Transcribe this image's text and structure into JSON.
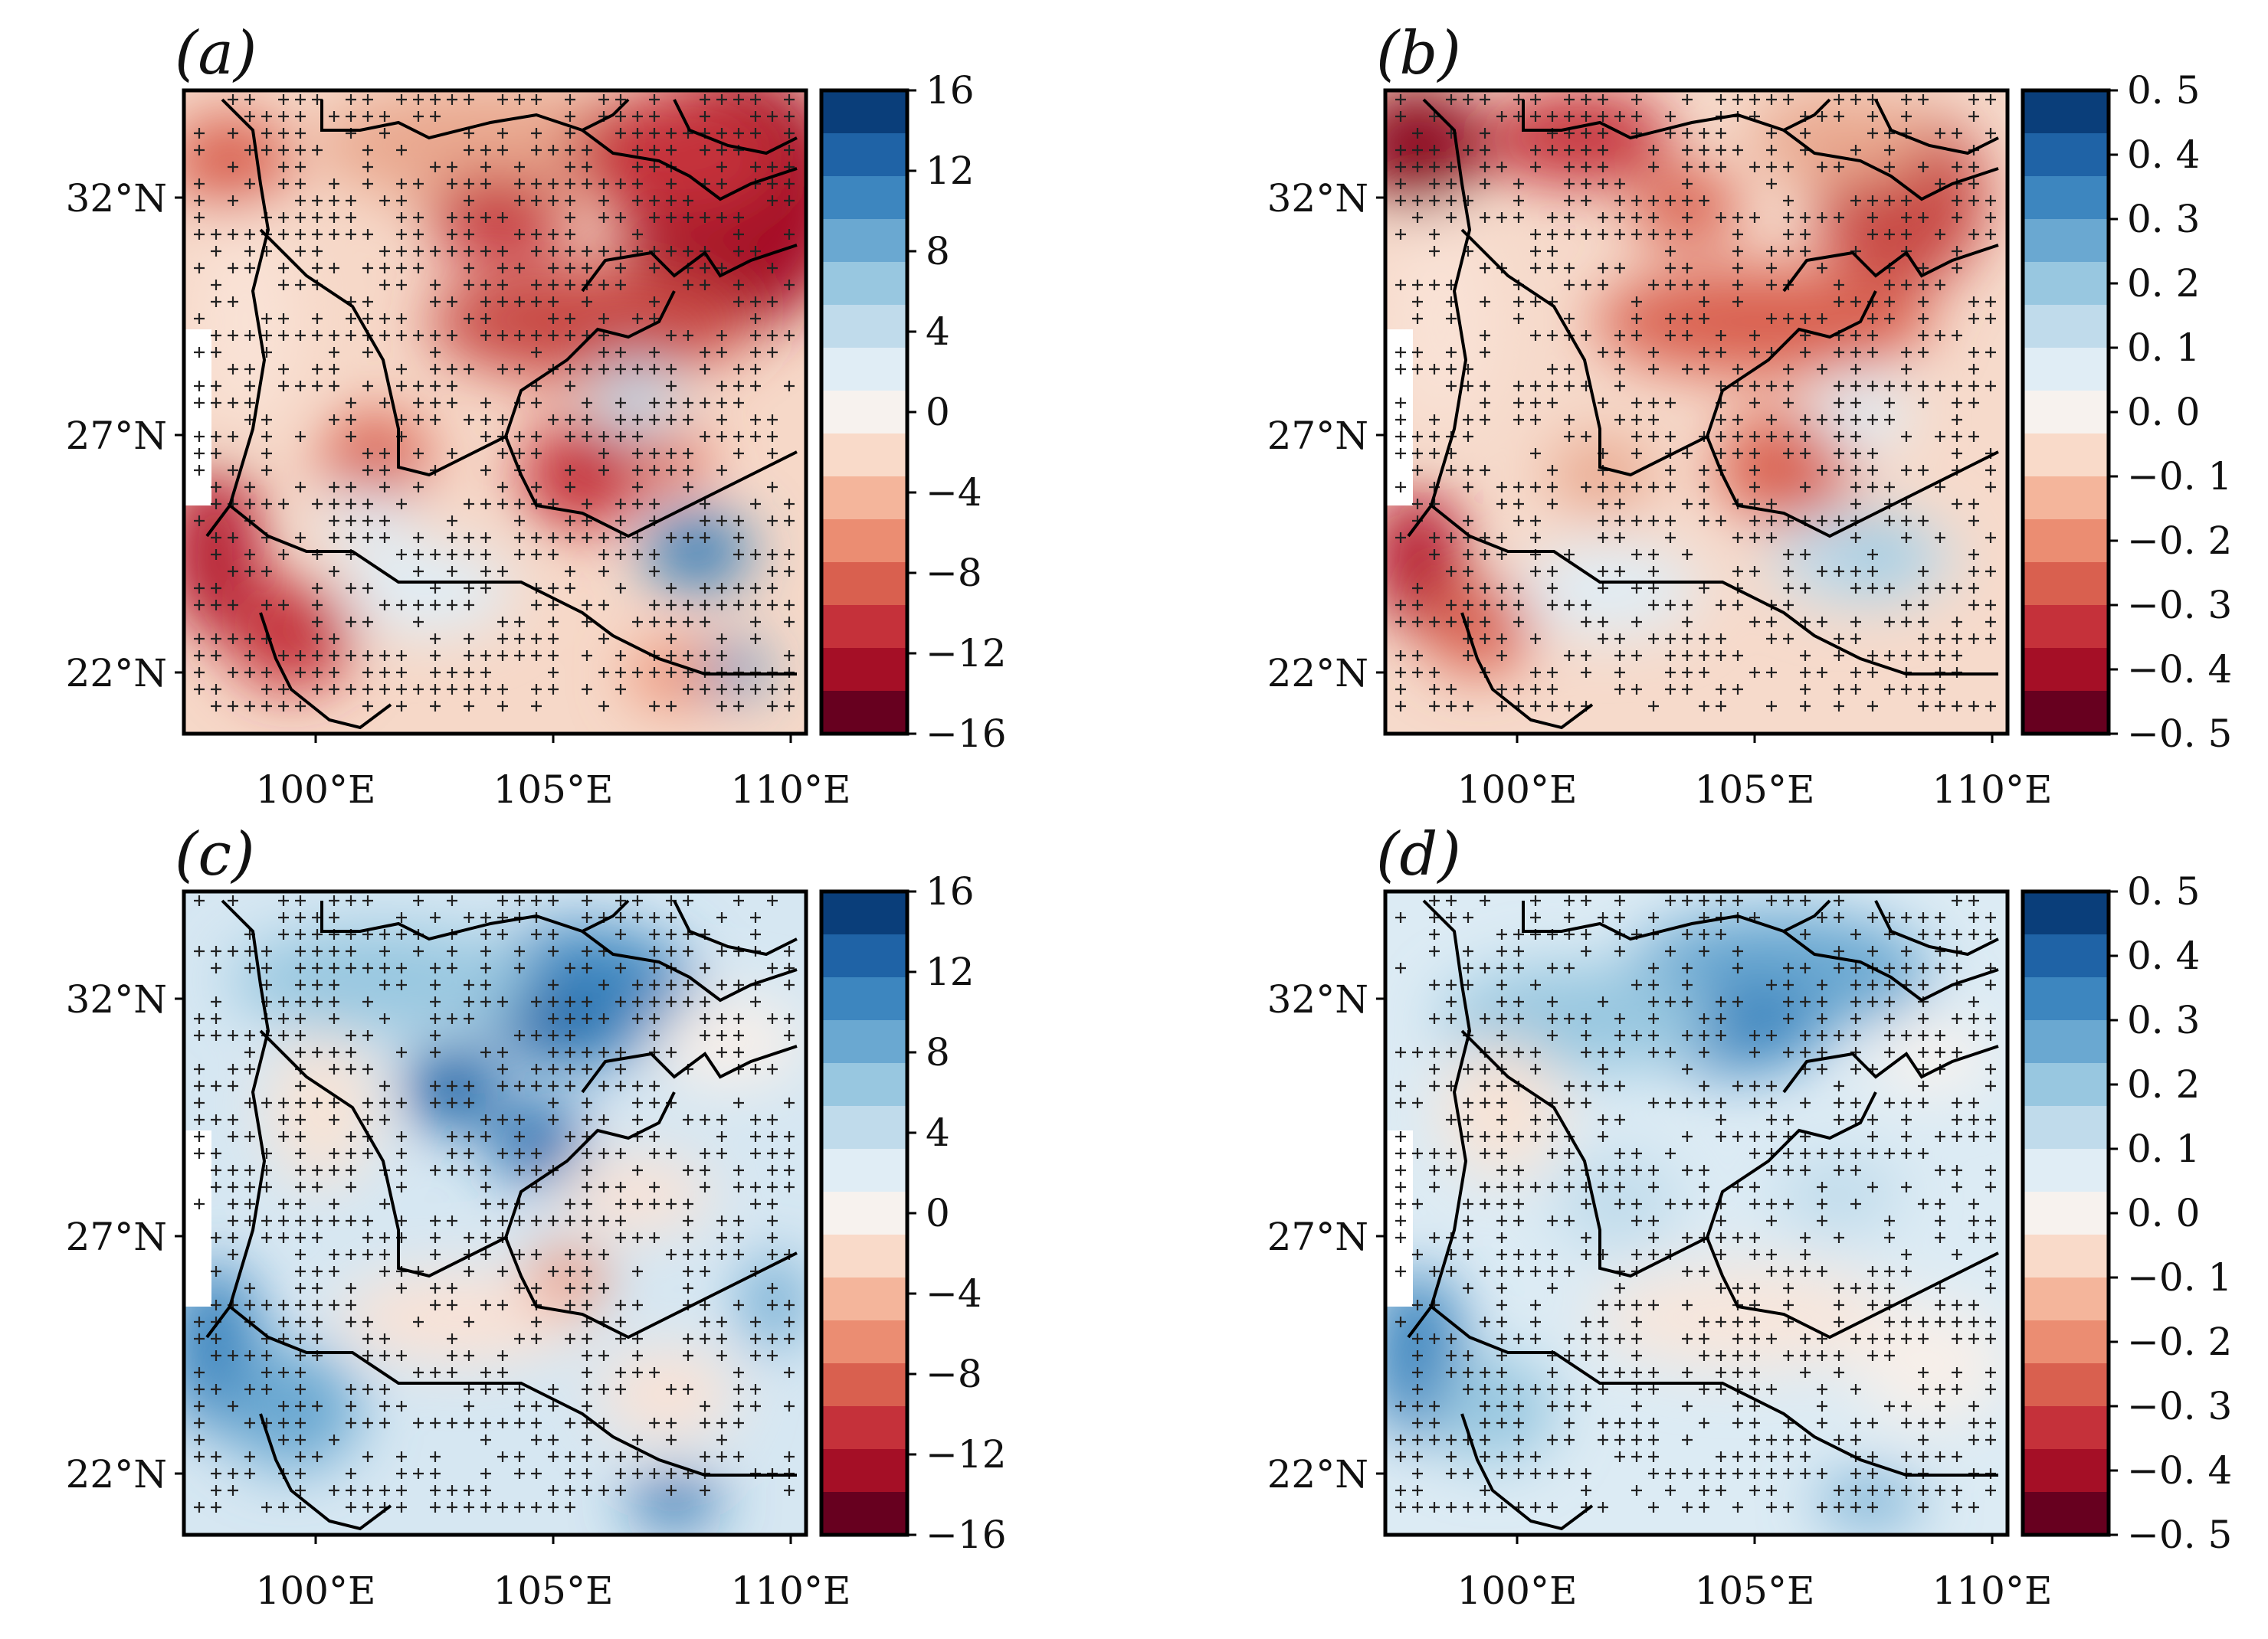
{
  "figure": {
    "panel_labels": [
      "(a)",
      "(b)",
      "(c)",
      "(d)"
    ],
    "lat_ticks": [
      "32°N",
      "27°N",
      "22°N"
    ],
    "lon_ticks": [
      "100°E",
      "105°E",
      "110°E"
    ],
    "lat_values": [
      32,
      27,
      22
    ],
    "lon_values": [
      100,
      105,
      110
    ],
    "colorbar_left": {
      "ticks": [
        "16",
        "12",
        "8",
        "4",
        "0",
        "−4",
        "−8",
        "−12",
        "−16"
      ],
      "range": [
        -16,
        16
      ]
    },
    "colorbar_right": {
      "ticks": [
        "0. 5",
        "0. 4",
        "0. 3",
        "0. 2",
        "0. 1",
        "0. 0",
        "−0. 1",
        "−0. 2",
        "−0. 3",
        "−0. 4",
        "−0. 5"
      ],
      "range": [
        -0.5,
        0.5
      ]
    },
    "colormap": [
      "#67001f",
      "#a50f26",
      "#c5313a",
      "#d9604f",
      "#eb8d72",
      "#f4b59b",
      "#f9dac9",
      "#f7f2ee",
      "#e0edf5",
      "#c0dbeb",
      "#98c7e0",
      "#6aa8d1",
      "#3d86bf",
      "#1f63a6",
      "#0a3e7a"
    ],
    "colors": {
      "frame": "#000000",
      "hatch": "#222222"
    }
  }
}
